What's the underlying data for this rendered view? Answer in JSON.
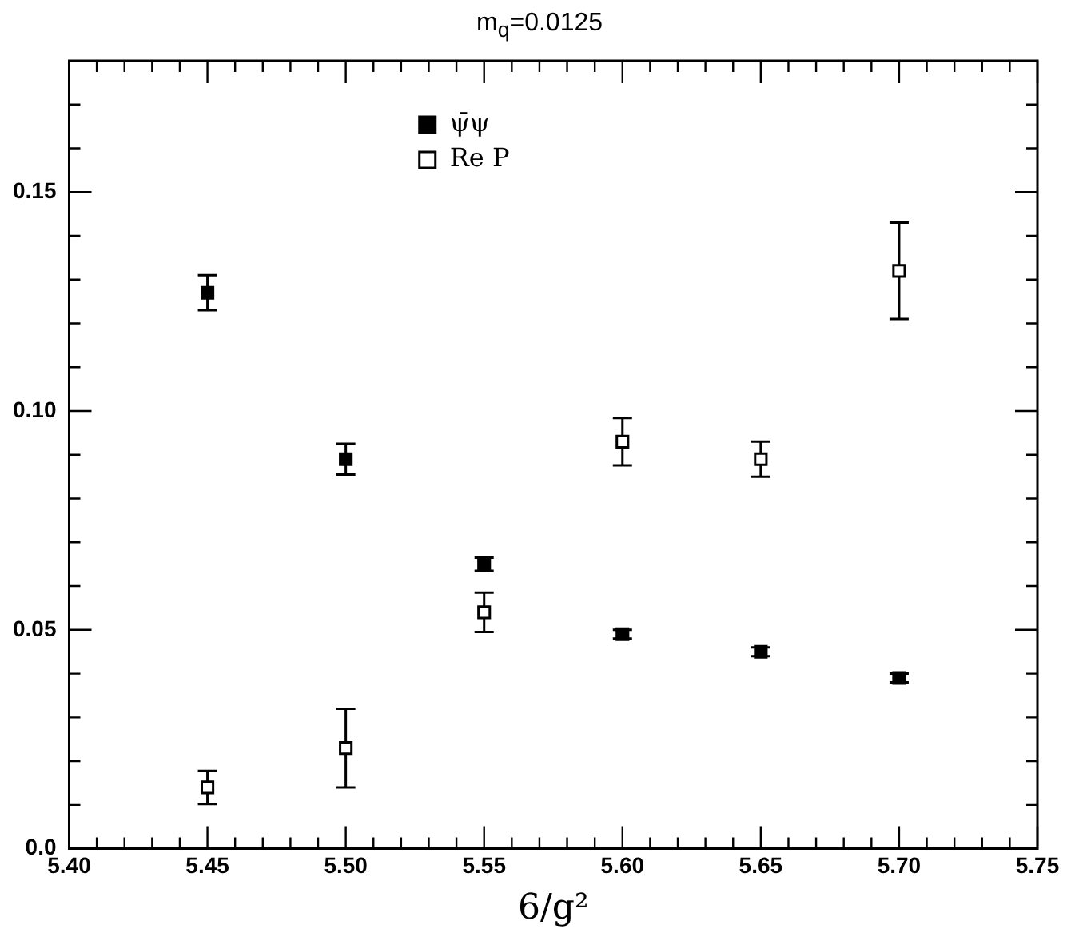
{
  "chart_data": {
    "type": "scatter",
    "title": "m$_{q}$=0.0125",
    "xlabel": "6/g²",
    "xlim": [
      5.4,
      5.75
    ],
    "xticks": [
      {
        "value": 5.4,
        "label": "5.40"
      },
      {
        "value": 5.41,
        "label": null
      },
      {
        "value": 5.42,
        "label": null
      },
      {
        "value": 5.43,
        "label": null
      },
      {
        "value": 5.44,
        "label": null
      },
      {
        "value": 5.45,
        "label": "5.45"
      },
      {
        "value": 5.46,
        "label": null
      },
      {
        "value": 5.47,
        "label": null
      },
      {
        "value": 5.48,
        "label": null
      },
      {
        "value": 5.49,
        "label": null
      },
      {
        "value": 5.5,
        "label": "5.50"
      },
      {
        "value": 5.51,
        "label": null
      },
      {
        "value": 5.52,
        "label": null
      },
      {
        "value": 5.53,
        "label": null
      },
      {
        "value": 5.54,
        "label": null
      },
      {
        "value": 5.55,
        "label": "5.55"
      },
      {
        "value": 5.56,
        "label": null
      },
      {
        "value": 5.57,
        "label": null
      },
      {
        "value": 5.58,
        "label": null
      },
      {
        "value": 5.59,
        "label": null
      },
      {
        "value": 5.6,
        "label": "5.60"
      },
      {
        "value": 5.61,
        "label": null
      },
      {
        "value": 5.62,
        "label": null
      },
      {
        "value": 5.63,
        "label": null
      },
      {
        "value": 5.64,
        "label": null
      },
      {
        "value": 5.65,
        "label": "5.65"
      },
      {
        "value": 5.66,
        "label": null
      },
      {
        "value": 5.67,
        "label": null
      },
      {
        "value": 5.68,
        "label": null
      },
      {
        "value": 5.69,
        "label": null
      },
      {
        "value": 5.7,
        "label": "5.70"
      },
      {
        "value": 5.71,
        "label": null
      },
      {
        "value": 5.72,
        "label": null
      },
      {
        "value": 5.73,
        "label": null
      },
      {
        "value": 5.74,
        "label": null
      },
      {
        "value": 5.75,
        "label": "5.75"
      }
    ],
    "ylim": [
      0,
      0.18
    ],
    "yticks": [
      {
        "value": 0,
        "label": "0.0"
      },
      {
        "value": 0.01,
        "label": null
      },
      {
        "value": 0.02,
        "label": null
      },
      {
        "value": 0.03,
        "label": null
      },
      {
        "value": 0.04,
        "label": null
      },
      {
        "value": 0.05,
        "label": "0.05"
      },
      {
        "value": 0.06,
        "label": null
      },
      {
        "value": 0.07,
        "label": null
      },
      {
        "value": 0.08,
        "label": null
      },
      {
        "value": 0.09,
        "label": null
      },
      {
        "value": 0.1,
        "label": "0.10"
      },
      {
        "value": 0.11,
        "label": null
      },
      {
        "value": 0.12,
        "label": null
      },
      {
        "value": 0.13,
        "label": null
      },
      {
        "value": 0.14,
        "label": null
      },
      {
        "value": 0.15,
        "label": "0.15"
      },
      {
        "value": 0.16,
        "label": null
      },
      {
        "value": 0.17,
        "label": null
      }
    ],
    "x": [
      5.45,
      5.5,
      5.55,
      5.6,
      5.65,
      5.7
    ],
    "marker": "square",
    "legend": "top",
    "grid": false,
    "series": [
      {
        "name": "ψ̄ψ",
        "color": "#000000",
        "values": [
          0.127,
          0.089,
          0.065,
          0.049,
          0.045,
          0.039
        ],
        "errors": [
          0.004,
          0.0035,
          0.0015,
          0.001,
          0.001,
          0.001
        ]
      },
      {
        "name": "Re P",
        "color": "#000000",
        "values": [
          0.014,
          0.023,
          0.054,
          0.093,
          0.089,
          0.132
        ],
        "errors": [
          0.0038,
          0.009,
          0.0045,
          0.0054,
          0.004,
          0.011
        ]
      }
    ]
  }
}
